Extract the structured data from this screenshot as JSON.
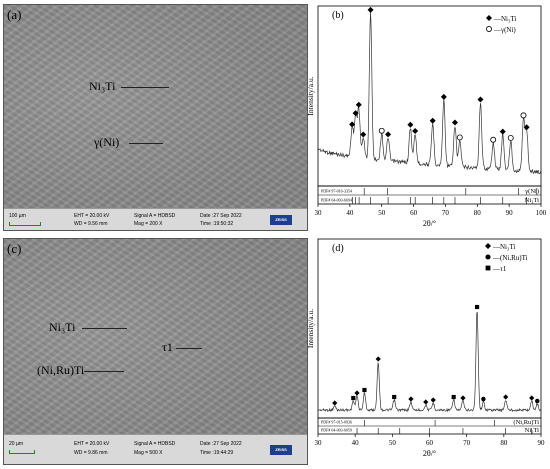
{
  "panel_a": {
    "letter": "(a)",
    "labels": [
      "Ni₃Ti",
      "γ(Ni)"
    ],
    "scale_bar": "100 µm",
    "eht": "EHT = 20.00 kV",
    "wd": "WD = 9.56 mm",
    "signal": "Signal A = HDBSD",
    "mag": "Mag =  200 X",
    "date": "Date :27 Sep 2022",
    "time": "Time :19:50:32",
    "logo": "ZEISS"
  },
  "panel_c": {
    "letter": "(c)",
    "labels": [
      "Ni₃Ti",
      "τ1",
      "(Ni,Ru)Ti"
    ],
    "scale_bar": "20 µm",
    "eht": "EHT = 20.00 kV",
    "wd": "WD = 9.86 mm",
    "signal": "Signal A = HDBSD",
    "mag": "Mag =  500 X",
    "date": "Date :27 Sep 2022",
    "time": "Time :19:44:29",
    "logo": "ZEISS"
  },
  "chart_data": [
    {
      "type": "line",
      "panel": "(b)",
      "xlabel": "2θ/°",
      "ylabel": "Intensity/a.u.",
      "xlim": [
        30,
        100
      ],
      "xticks": [
        "30",
        "40",
        "50",
        "60",
        "70",
        "80",
        "90",
        "100"
      ],
      "legend": [
        {
          "marker": "diamond-filled",
          "label": "—Ni₃Ti"
        },
        {
          "marker": "circle-open",
          "label": "—γ(Ni)"
        }
      ],
      "legend_placement": "top-right",
      "peaks": [
        {
          "x": 40.7,
          "y": 0.2,
          "marker": "diamond"
        },
        {
          "x": 41.8,
          "y": 0.28,
          "marker": "diamond"
        },
        {
          "x": 42.8,
          "y": 0.34,
          "marker": "diamond"
        },
        {
          "x": 44.2,
          "y": 0.14,
          "marker": "diamond"
        },
        {
          "x": 46.5,
          "y": 1.0,
          "marker": "diamond"
        },
        {
          "x": 50.0,
          "y": 0.18,
          "marker": "circle"
        },
        {
          "x": 52.0,
          "y": 0.16,
          "marker": "diamond"
        },
        {
          "x": 59.0,
          "y": 0.24,
          "marker": "diamond"
        },
        {
          "x": 60.5,
          "y": 0.2,
          "marker": "diamond"
        },
        {
          "x": 66.0,
          "y": 0.28,
          "marker": "diamond"
        },
        {
          "x": 69.5,
          "y": 0.45,
          "marker": "diamond"
        },
        {
          "x": 73.0,
          "y": 0.28,
          "marker": "diamond"
        },
        {
          "x": 74.5,
          "y": 0.18,
          "marker": "circle"
        },
        {
          "x": 81.0,
          "y": 0.45,
          "marker": "diamond"
        },
        {
          "x": 85.0,
          "y": 0.18,
          "marker": "circle"
        },
        {
          "x": 88.0,
          "y": 0.24,
          "marker": "diamond"
        },
        {
          "x": 90.5,
          "y": 0.2,
          "marker": "circle"
        },
        {
          "x": 94.5,
          "y": 0.36,
          "marker": "circle"
        },
        {
          "x": 95.5,
          "y": 0.28,
          "marker": "diamond"
        }
      ],
      "references": [
        {
          "pdf": "PDF# 97-016-3354",
          "phase": "γ(Ni)",
          "lines": [
            44.5,
            51.8,
            76.4,
            93.0,
            98.5
          ]
        },
        {
          "pdf": "PDF# 04-003-6694",
          "phase": "Ni₃Ti",
          "lines": [
            40.8,
            41.8,
            42.9,
            46.5,
            52.0,
            59.0,
            60.5,
            66.0,
            69.5,
            73.0,
            81.0,
            88.0,
            95.5
          ]
        }
      ]
    },
    {
      "type": "line",
      "panel": "(d)",
      "xlabel": "2θ/°",
      "ylabel": "Intensity/a.u.",
      "xlim": [
        30,
        90
      ],
      "xticks": [
        "30",
        "40",
        "50",
        "60",
        "70",
        "80",
        "90"
      ],
      "legend": [
        {
          "marker": "diamond-filled",
          "label": "—Ni₃Ti"
        },
        {
          "marker": "circle-filled",
          "label": "—(Ni,Ru)Ti"
        },
        {
          "marker": "square-filled",
          "label": "—τ1"
        }
      ],
      "legend_placement": "top-right",
      "peaks": [
        {
          "x": 34.5,
          "y": 0.04,
          "marker": "diamond"
        },
        {
          "x": 39.5,
          "y": 0.09,
          "marker": "square"
        },
        {
          "x": 40.5,
          "y": 0.14,
          "marker": "diamond"
        },
        {
          "x": 42.5,
          "y": 0.17,
          "marker": "square"
        },
        {
          "x": 46.2,
          "y": 0.48,
          "marker": "diamond"
        },
        {
          "x": 50.5,
          "y": 0.1,
          "marker": "square"
        },
        {
          "x": 55.0,
          "y": 0.08,
          "marker": "diamond"
        },
        {
          "x": 59.0,
          "y": 0.05,
          "marker": "diamond"
        },
        {
          "x": 61.0,
          "y": 0.07,
          "marker": "diamond"
        },
        {
          "x": 66.5,
          "y": 0.1,
          "marker": "square"
        },
        {
          "x": 69.0,
          "y": 0.09,
          "marker": "diamond"
        },
        {
          "x": 72.8,
          "y": 1.0,
          "marker": "square"
        },
        {
          "x": 74.5,
          "y": 0.08,
          "marker": "circle"
        },
        {
          "x": 80.5,
          "y": 0.1,
          "marker": "diamond"
        },
        {
          "x": 87.5,
          "y": 0.09,
          "marker": "diamond"
        },
        {
          "x": 89.0,
          "y": 0.06,
          "marker": "circle"
        }
      ],
      "references": [
        {
          "pdf": "PDF# 97-015-0936",
          "phase": "(Ni,Ru)Ti",
          "lines": [
            42.5,
            61.5,
            77.5
          ]
        },
        {
          "pdf": "PDF# 04-003-6059",
          "phase": "Ni₃Ti",
          "lines": [
            40.5,
            46.2,
            52.0,
            60.0,
            69.0,
            80.5,
            87.5
          ]
        }
      ]
    }
  ]
}
